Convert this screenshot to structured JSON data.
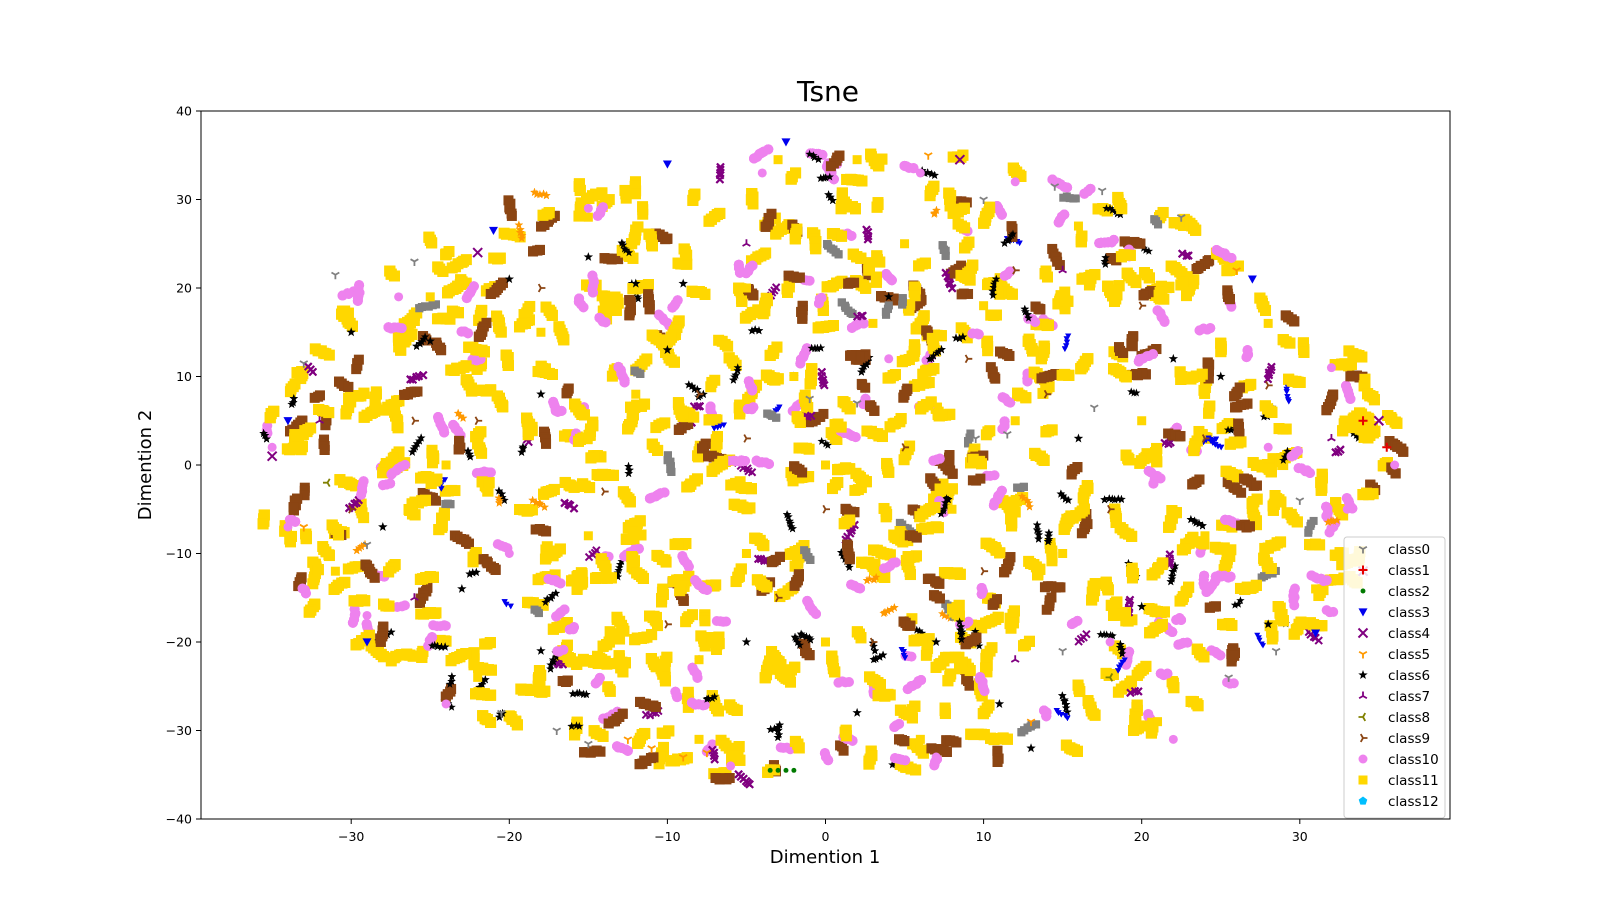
{
  "chart_data": {
    "type": "scatter",
    "title": "Tsne",
    "xlabel": "Dimention 1",
    "ylabel": "Dimention 2",
    "xlim": [
      -39.5,
      39.5
    ],
    "ylim": [
      -40,
      40
    ],
    "xticks": [
      -30,
      -20,
      -10,
      0,
      10,
      20,
      30
    ],
    "yticks": [
      -40,
      -30,
      -20,
      -10,
      0,
      10,
      20,
      30,
      40
    ],
    "xtick_labels": [
      "−30",
      "−20",
      "−10",
      "0",
      "10",
      "20",
      "30"
    ],
    "ytick_labels": [
      "−40",
      "−30",
      "−20",
      "−10",
      "0",
      "10",
      "20",
      "30",
      "40"
    ],
    "grid": false,
    "legend_position": "lower-right",
    "cloud": {
      "center": [
        0,
        0
      ],
      "x_radius": 36,
      "y_radius": 36
    },
    "series": [
      {
        "name": "class0",
        "color": "#808080",
        "marker": "tri-down",
        "points": [
          [
            17.5,
            31
          ],
          [
            14.5,
            31.5
          ],
          [
            -26,
            23
          ],
          [
            -33,
            11.5
          ],
          [
            -29,
            -9
          ],
          [
            -20.5,
            -28
          ],
          [
            -17,
            -30
          ],
          [
            -15,
            -31.5
          ],
          [
            28.5,
            -21
          ],
          [
            25.5,
            -24
          ],
          [
            30,
            -4
          ],
          [
            15,
            -21
          ],
          [
            9.5,
            3
          ],
          [
            -1,
            7.5
          ],
          [
            2,
            7
          ],
          [
            17,
            6.5
          ],
          [
            11.5,
            3.5
          ],
          [
            10,
            30
          ],
          [
            22.5,
            28
          ],
          [
            -31,
            21.5
          ]
        ]
      },
      {
        "name": "class1",
        "color": "#e60000",
        "marker": "plus",
        "points": [
          [
            35.5,
            2
          ],
          [
            34,
            5
          ]
        ]
      },
      {
        "name": "class2",
        "color": "#007a00",
        "marker": "dot",
        "points": [
          [
            -3,
            -34.5
          ],
          [
            -2.5,
            -34.5
          ],
          [
            -3.5,
            -34.5
          ],
          [
            -2,
            -34.5
          ]
        ]
      },
      {
        "name": "class3",
        "color": "#0000ee",
        "marker": "triangle-down",
        "points": [
          [
            -29,
            -20
          ],
          [
            -2.5,
            36.5
          ],
          [
            -10,
            34
          ],
          [
            -21,
            26.5
          ],
          [
            27,
            21
          ],
          [
            -34,
            5
          ],
          [
            31,
            -19
          ]
        ]
      },
      {
        "name": "class4",
        "color": "#800080",
        "marker": "x",
        "points": [
          [
            35,
            5
          ],
          [
            -22,
            24
          ],
          [
            8.5,
            34.5
          ],
          [
            34,
            -12
          ],
          [
            -35,
            1
          ]
        ]
      },
      {
        "name": "class5",
        "color": "#ff9900",
        "marker": "tri-down",
        "points": [
          [
            6.5,
            35
          ],
          [
            -11,
            -32
          ],
          [
            -9,
            -33
          ],
          [
            -12.5,
            -31
          ],
          [
            13,
            -29
          ],
          [
            -33,
            -7
          ],
          [
            26,
            22
          ],
          [
            -7.5,
            -32.5
          ]
        ]
      },
      {
        "name": "class6",
        "color": "#000000",
        "marker": "star",
        "points": [
          [
            -12,
            20.5
          ],
          [
            -9,
            20.5
          ],
          [
            -15,
            23.5
          ],
          [
            -20,
            21
          ],
          [
            -25,
            14
          ],
          [
            -23,
            -14
          ],
          [
            -18,
            -21
          ],
          [
            -8,
            -22
          ],
          [
            -5,
            -20
          ],
          [
            7,
            -20
          ],
          [
            11,
            -27
          ],
          [
            20,
            -16
          ],
          [
            25,
            10
          ],
          [
            28,
            -18
          ],
          [
            22,
            12
          ],
          [
            -2,
            10
          ],
          [
            4,
            19
          ],
          [
            -30,
            15
          ],
          [
            -28,
            -7
          ],
          [
            13,
            -32
          ],
          [
            -10,
            13
          ],
          [
            16,
            3
          ],
          [
            -18,
            8
          ],
          [
            2,
            -28
          ]
        ]
      },
      {
        "name": "class7",
        "color": "#800080",
        "marker": "tri-up",
        "points": [
          [
            -32,
            5
          ],
          [
            32,
            3
          ],
          [
            -26,
            -15
          ],
          [
            15,
            22
          ],
          [
            -5,
            25
          ],
          [
            12,
            -22
          ]
        ]
      },
      {
        "name": "class8",
        "color": "#808000",
        "marker": "tri-left",
        "points": [
          [
            -31.5,
            -2
          ],
          [
            18,
            -24
          ]
        ]
      },
      {
        "name": "class9",
        "color": "#8b4513",
        "marker": "tri-right",
        "points": [
          [
            -22,
            5
          ],
          [
            -14,
            -3
          ],
          [
            -8,
            8
          ],
          [
            -3,
            -15
          ],
          [
            5,
            2
          ],
          [
            9,
            12
          ],
          [
            14,
            8
          ],
          [
            18,
            -5
          ],
          [
            24,
            3
          ],
          [
            -26,
            5
          ],
          [
            -10,
            -18
          ],
          [
            3,
            -20
          ],
          [
            10,
            -12
          ],
          [
            20,
            18
          ],
          [
            -18,
            20
          ],
          [
            28,
            9
          ],
          [
            -30,
            -5
          ],
          [
            12,
            22
          ],
          [
            -5,
            3
          ],
          [
            0,
            -5
          ]
        ]
      },
      {
        "name": "class10",
        "color": "#ee82ee",
        "marker": "circle",
        "points": [
          [
            36,
            0
          ],
          [
            -34,
            -7
          ],
          [
            -29,
            -17
          ],
          [
            -24,
            -27
          ],
          [
            -6,
            -34
          ],
          [
            7,
            -33
          ],
          [
            22,
            -31
          ],
          [
            33,
            -5
          ],
          [
            32,
            11
          ],
          [
            25,
            24
          ],
          [
            -4,
            33
          ],
          [
            6,
            33
          ],
          [
            -27,
            19
          ],
          [
            -35,
            2
          ],
          [
            -15,
            29
          ],
          [
            12,
            32
          ],
          [
            18,
            -20
          ],
          [
            -20,
            -10
          ],
          [
            4,
            12
          ],
          [
            28,
            2
          ]
        ]
      },
      {
        "name": "class11",
        "color": "#ffd700",
        "marker": "square",
        "points": [
          [
            -3,
            34.5
          ],
          [
            2,
            34.5
          ],
          [
            -15,
            28
          ],
          [
            -25,
            19
          ],
          [
            -33,
            4
          ],
          [
            -31,
            -12
          ],
          [
            -22,
            -24
          ],
          [
            -8,
            -31
          ],
          [
            6,
            -31
          ],
          [
            21,
            -29
          ],
          [
            31,
            -14
          ],
          [
            34,
            3
          ],
          [
            28,
            16
          ],
          [
            16,
            27
          ],
          [
            -5,
            20
          ],
          [
            3,
            16
          ],
          [
            -12,
            8
          ],
          [
            0,
            0
          ],
          [
            8,
            -5
          ],
          [
            -15,
            -8
          ],
          [
            15,
            -10
          ],
          [
            -5,
            -10
          ],
          [
            20,
            5
          ],
          [
            -24,
            0
          ],
          [
            5,
            25
          ],
          [
            10,
            18
          ],
          [
            -8,
            -22
          ],
          [
            0,
            -20
          ],
          [
            12,
            5
          ],
          [
            -18,
            15
          ],
          [
            24,
            -8
          ],
          [
            -2,
            10
          ]
        ]
      },
      {
        "name": "class12",
        "color": "#00bfff",
        "marker": "pentagon",
        "points": []
      }
    ]
  }
}
